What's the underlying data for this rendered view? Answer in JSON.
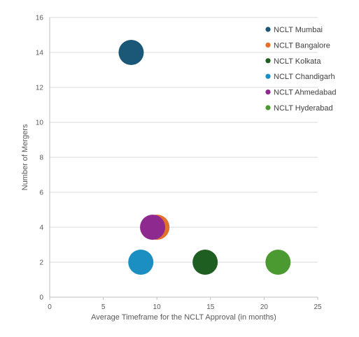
{
  "chart_data": {
    "type": "scatter",
    "title": "",
    "xlabel": "Average Timeframe for the NCLT Approval (in months)",
    "ylabel": "Number of Mergers",
    "xlim": [
      0,
      25
    ],
    "ylim": [
      0,
      16
    ],
    "xticks": [
      0,
      5,
      10,
      15,
      20,
      25
    ],
    "yticks": [
      0,
      2,
      4,
      6,
      8,
      10,
      12,
      14,
      16
    ],
    "x_tick_labels": [
      "0",
      "5",
      "10",
      "15",
      "20",
      "25"
    ],
    "y_tick_labels": [
      "0",
      "2",
      "4",
      "6",
      "8",
      "10",
      "12",
      "14",
      "16"
    ],
    "grid": "horizontal",
    "legend_position": "top-right",
    "series": [
      {
        "name": "NCLT Mumbai",
        "color": "#1b5878",
        "x": 7.6,
        "y": 14
      },
      {
        "name": "NCLT Bangalore",
        "color": "#e2722b",
        "x": 10.0,
        "y": 4
      },
      {
        "name": "NCLT Kolkata",
        "color": "#1e5e20",
        "x": 14.5,
        "y": 2
      },
      {
        "name": "NCLT Chandigarh",
        "color": "#1c8fc2",
        "x": 8.5,
        "y": 2
      },
      {
        "name": "NCLT Ahmedabad",
        "color": "#8e2a8f",
        "x": 9.6,
        "y": 4
      },
      {
        "name": "NCLT Hyderabad",
        "color": "#4a9a31",
        "x": 21.3,
        "y": 2
      }
    ]
  }
}
